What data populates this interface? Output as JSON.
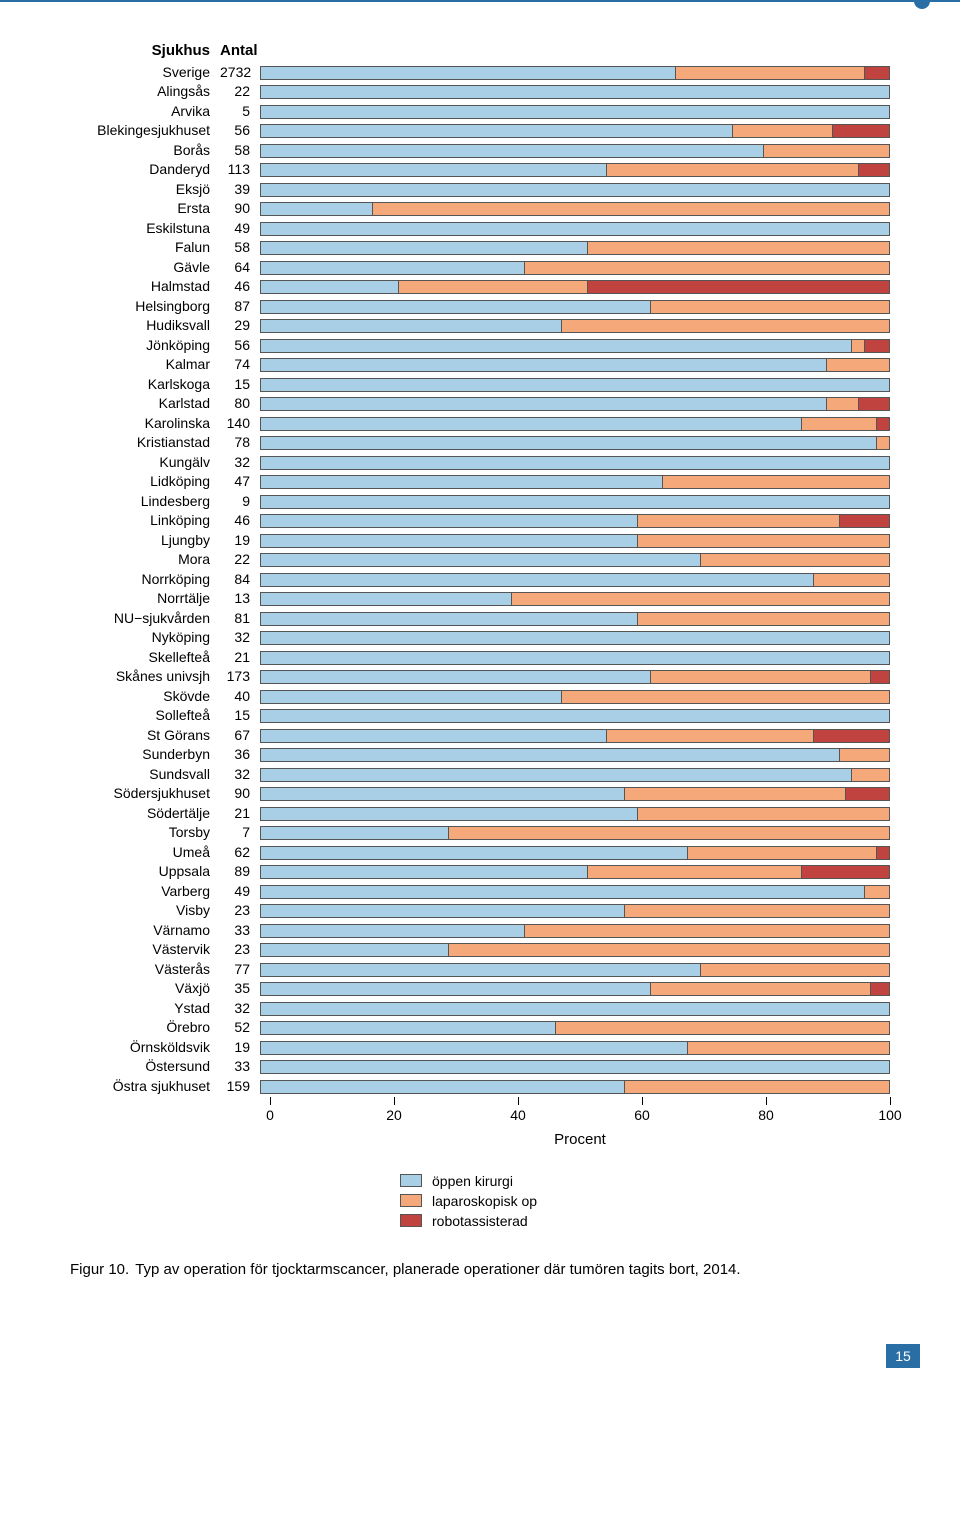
{
  "colors": {
    "open": "#a8cfe6",
    "lap": "#f5a97a",
    "robot": "#c1433f",
    "border": "#555555",
    "accent": "#2a6ea6"
  },
  "headers": {
    "sjukhus": "Sjukhus",
    "antal": "Antal"
  },
  "axis": {
    "ticks": [
      0,
      20,
      40,
      60,
      80,
      100
    ],
    "title": "Procent"
  },
  "legend": [
    {
      "label": "öppen kirurgi",
      "colorKey": "open"
    },
    {
      "label": "laparoskopisk op",
      "colorKey": "lap"
    },
    {
      "label": "robotassisterad",
      "colorKey": "robot"
    }
  ],
  "rows": [
    {
      "name": "Sverige",
      "count": 2732,
      "seg": [
        66,
        30,
        4
      ]
    },
    {
      "name": "Alingsås",
      "count": 22,
      "seg": [
        100,
        0,
        0
      ]
    },
    {
      "name": "Arvika",
      "count": 5,
      "seg": [
        100,
        0,
        0
      ]
    },
    {
      "name": "Blekingesjukhuset",
      "count": 56,
      "seg": [
        75,
        16,
        9
      ]
    },
    {
      "name": "Borås",
      "count": 58,
      "seg": [
        80,
        20,
        0
      ]
    },
    {
      "name": "Danderyd",
      "count": 113,
      "seg": [
        55,
        40,
        5
      ]
    },
    {
      "name": "Eksjö",
      "count": 39,
      "seg": [
        100,
        0,
        0
      ]
    },
    {
      "name": "Ersta",
      "count": 90,
      "seg": [
        18,
        82,
        0
      ]
    },
    {
      "name": "Eskilstuna",
      "count": 49,
      "seg": [
        100,
        0,
        0
      ]
    },
    {
      "name": "Falun",
      "count": 58,
      "seg": [
        52,
        48,
        0
      ]
    },
    {
      "name": "Gävle",
      "count": 64,
      "seg": [
        42,
        58,
        0
      ]
    },
    {
      "name": "Halmstad",
      "count": 46,
      "seg": [
        22,
        30,
        48
      ]
    },
    {
      "name": "Helsingborg",
      "count": 87,
      "seg": [
        62,
        38,
        0
      ]
    },
    {
      "name": "Hudiksvall",
      "count": 29,
      "seg": [
        48,
        52,
        0
      ]
    },
    {
      "name": "Jönköping",
      "count": 56,
      "seg": [
        94,
        2,
        4
      ]
    },
    {
      "name": "Kalmar",
      "count": 74,
      "seg": [
        90,
        10,
        0
      ]
    },
    {
      "name": "Karlskoga",
      "count": 15,
      "seg": [
        100,
        0,
        0
      ]
    },
    {
      "name": "Karlstad",
      "count": 80,
      "seg": [
        90,
        5,
        5
      ]
    },
    {
      "name": "Karolinska",
      "count": 140,
      "seg": [
        86,
        12,
        2
      ]
    },
    {
      "name": "Kristianstad",
      "count": 78,
      "seg": [
        98,
        2,
        0
      ]
    },
    {
      "name": "Kungälv",
      "count": 32,
      "seg": [
        100,
        0,
        0
      ]
    },
    {
      "name": "Lidköping",
      "count": 47,
      "seg": [
        64,
        36,
        0
      ]
    },
    {
      "name": "Lindesberg",
      "count": 9,
      "seg": [
        100,
        0,
        0
      ]
    },
    {
      "name": "Linköping",
      "count": 46,
      "seg": [
        60,
        32,
        8
      ]
    },
    {
      "name": "Ljungby",
      "count": 19,
      "seg": [
        60,
        40,
        0
      ]
    },
    {
      "name": "Mora",
      "count": 22,
      "seg": [
        70,
        30,
        0
      ]
    },
    {
      "name": "Norrköping",
      "count": 84,
      "seg": [
        88,
        12,
        0
      ]
    },
    {
      "name": "Norrtälje",
      "count": 13,
      "seg": [
        40,
        60,
        0
      ]
    },
    {
      "name": "NU−sjukvården",
      "count": 81,
      "seg": [
        60,
        40,
        0
      ]
    },
    {
      "name": "Nyköping",
      "count": 32,
      "seg": [
        100,
        0,
        0
      ]
    },
    {
      "name": "Skellefteå",
      "count": 21,
      "seg": [
        100,
        0,
        0
      ]
    },
    {
      "name": "Skånes univsjh",
      "count": 173,
      "seg": [
        62,
        35,
        3
      ]
    },
    {
      "name": "Skövde",
      "count": 40,
      "seg": [
        48,
        52,
        0
      ]
    },
    {
      "name": "Sollefteå",
      "count": 15,
      "seg": [
        100,
        0,
        0
      ]
    },
    {
      "name": "St Görans",
      "count": 67,
      "seg": [
        55,
        33,
        12
      ]
    },
    {
      "name": "Sunderbyn",
      "count": 36,
      "seg": [
        92,
        8,
        0
      ]
    },
    {
      "name": "Sundsvall",
      "count": 32,
      "seg": [
        94,
        6,
        0
      ]
    },
    {
      "name": "Södersjukhuset",
      "count": 90,
      "seg": [
        58,
        35,
        7
      ]
    },
    {
      "name": "Södertälje",
      "count": 21,
      "seg": [
        60,
        40,
        0
      ]
    },
    {
      "name": "Torsby",
      "count": 7,
      "seg": [
        30,
        70,
        0
      ]
    },
    {
      "name": "Umeå",
      "count": 62,
      "seg": [
        68,
        30,
        2
      ]
    },
    {
      "name": "Uppsala",
      "count": 89,
      "seg": [
        52,
        34,
        14
      ]
    },
    {
      "name": "Varberg",
      "count": 49,
      "seg": [
        96,
        4,
        0
      ]
    },
    {
      "name": "Visby",
      "count": 23,
      "seg": [
        58,
        42,
        0
      ]
    },
    {
      "name": "Värnamo",
      "count": 33,
      "seg": [
        42,
        58,
        0
      ]
    },
    {
      "name": "Västervik",
      "count": 23,
      "seg": [
        30,
        70,
        0
      ]
    },
    {
      "name": "Västerås",
      "count": 77,
      "seg": [
        70,
        30,
        0
      ]
    },
    {
      "name": "Växjö",
      "count": 35,
      "seg": [
        62,
        35,
        3
      ]
    },
    {
      "name": "Ystad",
      "count": 32,
      "seg": [
        100,
        0,
        0
      ]
    },
    {
      "name": "Örebro",
      "count": 52,
      "seg": [
        47,
        53,
        0
      ]
    },
    {
      "name": "Örnsköldsvik",
      "count": 19,
      "seg": [
        68,
        32,
        0
      ]
    },
    {
      "name": "Östersund",
      "count": 33,
      "seg": [
        100,
        0,
        0
      ]
    },
    {
      "name": "Östra sjukhuset",
      "count": 159,
      "seg": [
        58,
        42,
        0
      ]
    }
  ],
  "caption": {
    "label": "Figur 10.",
    "text": "Typ av operation för tjocktarmscancer, planerade operationer där tumören tagits bort, 2014."
  },
  "pageNumber": "15"
}
